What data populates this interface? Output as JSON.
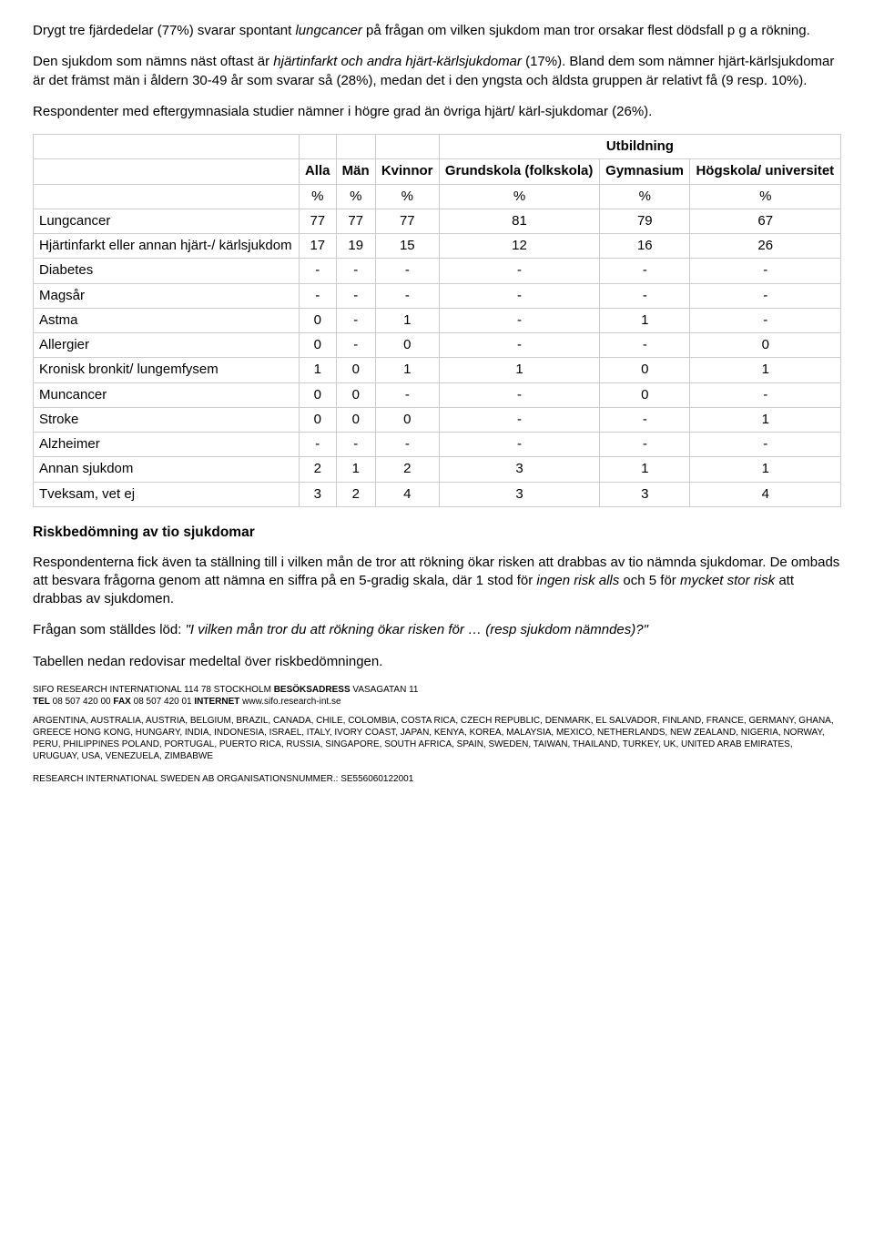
{
  "para1": {
    "pre": "Drygt tre fjärdedelar (77%) svarar spontant ",
    "em": "lungcancer",
    "post": " på frågan om vilken sjukdom man tror orsakar flest dödsfall p g a rökning."
  },
  "para2": {
    "pre": "Den sjukdom som nämns näst oftast är ",
    "em": "hjärtinfarkt och andra hjärt-kärlsjukdomar",
    "post": " (17%). Bland dem som nämner hjärt-kärlsjukdomar är det främst män i åldern 30-49 år som svarar så (28%), medan det i den yngsta och äldsta gruppen är relativt få (9 resp. 10%)."
  },
  "para3": "Respondenter med eftergymnasiala studier nämner i högre grad än övriga hjärt/ kärl-sjukdomar (26%).",
  "table": {
    "utbildning_label": "Utbildning",
    "headers": {
      "alla": "Alla",
      "man": "Män",
      "kvinnor": "Kvinnor",
      "grundskola": "Grundskola\n(folkskola)",
      "gymnasium": "Gymnasium",
      "hogskola": "Högskola/\nuniversitet"
    },
    "unit_row": [
      "%",
      "%",
      "%",
      "%",
      "%",
      "%"
    ],
    "rows": [
      {
        "label": "Lungcancer",
        "vals": [
          "77",
          "77",
          "77",
          "81",
          "79",
          "67"
        ]
      },
      {
        "label": "Hjärtinfarkt eller annan hjärt-/ kärlsjukdom",
        "vals": [
          "17",
          "19",
          "15",
          "12",
          "16",
          "26"
        ]
      },
      {
        "label": "Diabetes",
        "vals": [
          "-",
          "-",
          "-",
          "-",
          "-",
          "-"
        ]
      },
      {
        "label": "Magsår",
        "vals": [
          "-",
          "-",
          "-",
          "-",
          "-",
          "-"
        ]
      },
      {
        "label": "Astma",
        "vals": [
          "0",
          "-",
          "1",
          "-",
          "1",
          "-"
        ]
      },
      {
        "label": "Allergier",
        "vals": [
          "0",
          "-",
          "0",
          "-",
          "-",
          "0"
        ]
      },
      {
        "label": "Kronisk bronkit/ lungemfysem",
        "vals": [
          "1",
          "0",
          "1",
          "1",
          "0",
          "1"
        ]
      },
      {
        "label": "Muncancer",
        "vals": [
          "0",
          "0",
          "-",
          "-",
          "0",
          "-"
        ]
      },
      {
        "label": "Stroke",
        "vals": [
          "0",
          "0",
          "0",
          "-",
          "-",
          "1"
        ]
      },
      {
        "label": "Alzheimer",
        "vals": [
          "-",
          "-",
          "-",
          "-",
          "-",
          "-"
        ]
      },
      {
        "label": "Annan sjukdom",
        "vals": [
          "2",
          "1",
          "2",
          "3",
          "1",
          "1"
        ]
      },
      {
        "label": "Tveksam, vet ej",
        "vals": [
          "3",
          "2",
          "4",
          "3",
          "3",
          "4"
        ]
      }
    ]
  },
  "heading2": "Riskbedömning av tio sjukdomar",
  "para4": {
    "pre": "Respondenterna fick även ta ställning till i vilken mån de tror att rökning ökar risken att drabbas av tio nämnda sjukdomar. De ombads att besvara frågorna genom att nämna en siffra på en 5-gradig skala, där 1 stod för ",
    "em1": "ingen risk alls",
    "mid": " och 5 för ",
    "em2": "mycket stor risk",
    "post": " att drabbas av sjukdomen."
  },
  "para5": {
    "pre": "Frågan som ställdes löd: ",
    "em": "\"I vilken mån tror du att rökning ökar risken för … (resp sjukdom nämndes)?\""
  },
  "para6": "Tabellen nedan redovisar medeltal över riskbedömningen.",
  "footer": {
    "line1": {
      "a": "SIFO RESEARCH INTERNATIONAL 114 78  STOCKHOLM  ",
      "b": "BESÖKSADRESS",
      "c": " VASAGATAN 11"
    },
    "line2": {
      "a": "TEL",
      "b": " 08 507 420 00 ",
      "c": "FAX",
      "d": " 08 507 420 01 ",
      "e": "INTERNET",
      "f": " www.sifo.research-int.se"
    },
    "countries": "ARGENTINA, AUSTRALIA, AUSTRIA, BELGIUM, BRAZIL, CANADA, CHILE, COLOMBIA, COSTA RICA, CZECH REPUBLIC, DENMARK, EL SALVADOR, FINLAND, FRANCE, GERMANY, GHANA, GREECE\nHONG KONG, HUNGARY, INDIA, INDONESIA, ISRAEL, ITALY, IVORY COAST, JAPAN, KENYA, KOREA, MALAYSIA, MEXICO, NETHERLANDS, NEW ZEALAND, NIGERIA, NORWAY, PERU, PHILIPPINES POLAND, PORTUGAL, PUERTO RICA, RUSSIA, SINGAPORE, SOUTH AFRICA, SPAIN, SWEDEN, TAIWAN, THAILAND, TURKEY, UK, UNITED ARAB EMIRATES, URUGUAY, USA, VENEZUELA, ZIMBABWE",
    "org": "RESEARCH INTERNATIONAL SWEDEN AB ORGANISATIONSNUMMER.: SE556060122001"
  }
}
